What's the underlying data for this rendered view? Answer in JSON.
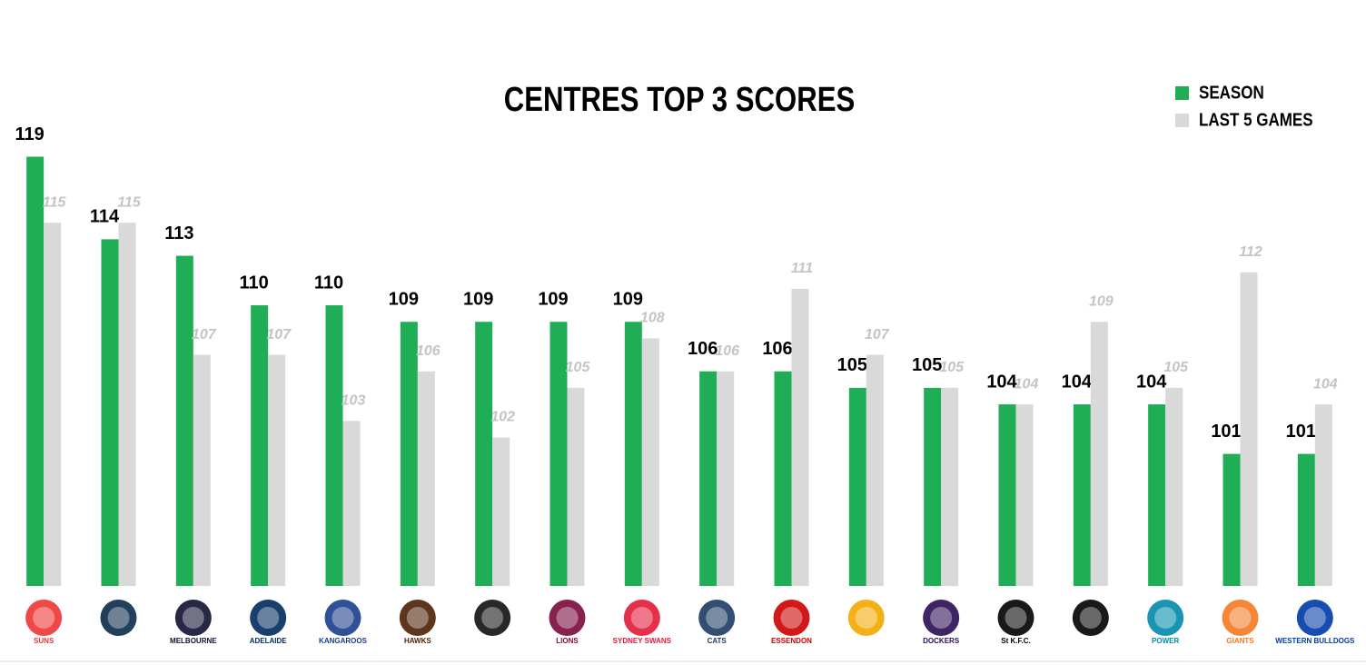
{
  "chart_data": {
    "type": "bar",
    "title": "CENTRES TOP 3 SCORES",
    "categories": [
      "SUNS",
      null,
      "MELBOURNE",
      "ADELAIDE",
      "KANGAROOS",
      "HAWKS",
      null,
      "LIONS",
      "SYDNEY SWANS",
      "CATS",
      "ESSENDON",
      null,
      "DOCKERS",
      "St K.F.C.",
      null,
      "POWER",
      "GIANTS",
      "WESTERN BULLDOGS"
    ],
    "series": [
      {
        "name": "SEASON",
        "color": "#1fad55",
        "values": [
          119,
          114,
          113,
          110,
          110,
          109,
          109,
          109,
          109,
          106,
          106,
          105,
          105,
          104,
          104,
          104,
          101,
          101
        ]
      },
      {
        "name": "LAST 5 GAMES",
        "color": "#d9d9d9",
        "values": [
          115,
          115,
          107,
          107,
          103,
          106,
          102,
          105,
          108,
          106,
          111,
          107,
          105,
          104,
          109,
          105,
          112,
          104
        ]
      }
    ],
    "ylim": [
      93,
      122
    ],
    "legend": "top-right"
  }
}
